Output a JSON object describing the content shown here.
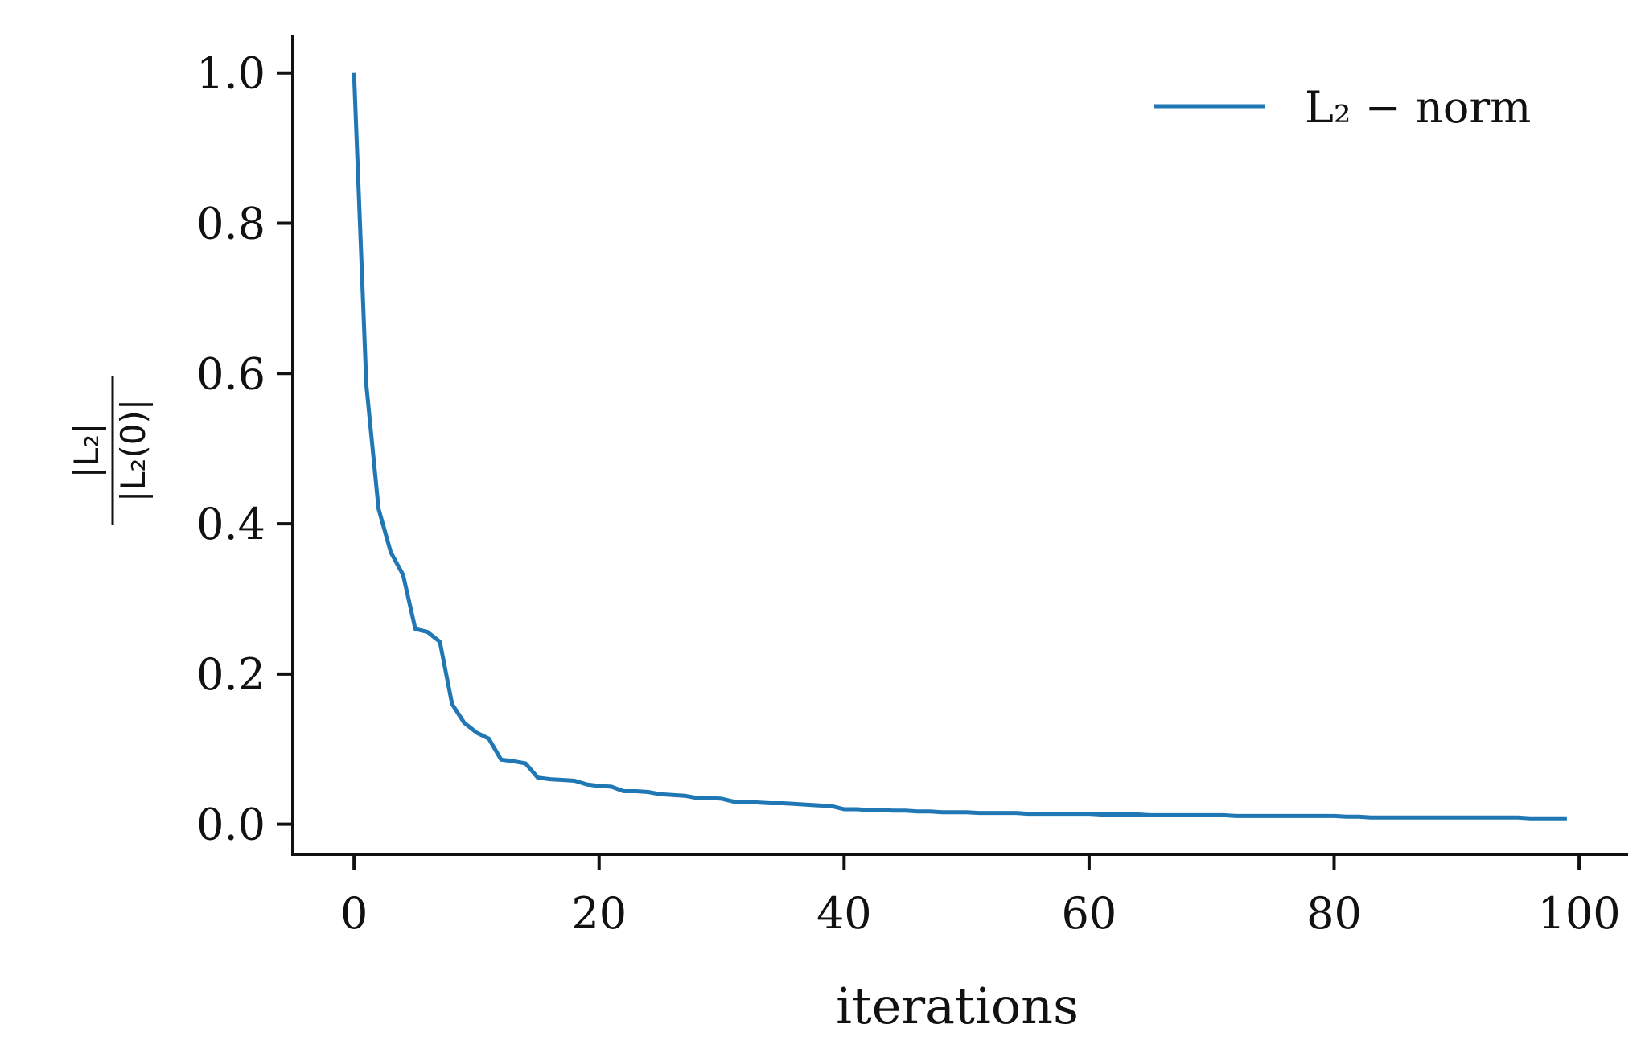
{
  "chart_data": {
    "type": "line",
    "xlabel": "iterations",
    "ylabel_numerator": "|L₂|",
    "ylabel_denominator": "|L₂(0)|",
    "xlim": [
      -5,
      104
    ],
    "ylim": [
      -0.04,
      1.05
    ],
    "x_ticks": [
      0,
      20,
      40,
      60,
      80,
      100
    ],
    "y_ticks": [
      0.0,
      0.2,
      0.4,
      0.6,
      0.8,
      1.0
    ],
    "x_tick_labels": [
      "0",
      "20",
      "40",
      "60",
      "80",
      "100"
    ],
    "y_tick_labels": [
      "0.0",
      "0.2",
      "0.4",
      "0.6",
      "0.8",
      "1.0"
    ],
    "grid": false,
    "legend_position": "top-right",
    "series": [
      {
        "name": "L₂ − norm",
        "color": "#1f77b4",
        "x": [
          0,
          1,
          2,
          3,
          4,
          5,
          6,
          7,
          8,
          9,
          10,
          11,
          12,
          13,
          14,
          15,
          16,
          17,
          18,
          19,
          20,
          21,
          22,
          23,
          24,
          25,
          26,
          27,
          28,
          29,
          30,
          31,
          32,
          33,
          34,
          35,
          36,
          37,
          38,
          39,
          40,
          41,
          42,
          43,
          44,
          45,
          46,
          47,
          48,
          49,
          50,
          51,
          52,
          53,
          54,
          55,
          56,
          57,
          58,
          59,
          60,
          61,
          62,
          63,
          64,
          65,
          66,
          67,
          68,
          69,
          70,
          71,
          72,
          73,
          74,
          75,
          76,
          77,
          78,
          79,
          80,
          81,
          82,
          83,
          84,
          85,
          86,
          87,
          88,
          89,
          90,
          91,
          92,
          93,
          94,
          95,
          96,
          97,
          98,
          99
        ],
        "y": [
          1.0,
          0.585,
          0.42,
          0.362,
          0.332,
          0.26,
          0.256,
          0.243,
          0.16,
          0.135,
          0.122,
          0.114,
          0.086,
          0.084,
          0.081,
          0.062,
          0.06,
          0.059,
          0.058,
          0.053,
          0.051,
          0.05,
          0.044,
          0.044,
          0.043,
          0.04,
          0.039,
          0.038,
          0.035,
          0.035,
          0.034,
          0.03,
          0.03,
          0.029,
          0.028,
          0.028,
          0.027,
          0.026,
          0.025,
          0.024,
          0.02,
          0.02,
          0.019,
          0.019,
          0.018,
          0.018,
          0.017,
          0.017,
          0.016,
          0.016,
          0.016,
          0.015,
          0.015,
          0.015,
          0.015,
          0.014,
          0.014,
          0.014,
          0.014,
          0.014,
          0.014,
          0.013,
          0.013,
          0.013,
          0.013,
          0.012,
          0.012,
          0.012,
          0.012,
          0.012,
          0.012,
          0.012,
          0.011,
          0.011,
          0.011,
          0.011,
          0.011,
          0.011,
          0.011,
          0.011,
          0.011,
          0.01,
          0.01,
          0.009,
          0.009,
          0.009,
          0.009,
          0.009,
          0.009,
          0.009,
          0.009,
          0.009,
          0.009,
          0.009,
          0.009,
          0.009,
          0.008,
          0.008,
          0.008,
          0.008
        ]
      }
    ]
  }
}
